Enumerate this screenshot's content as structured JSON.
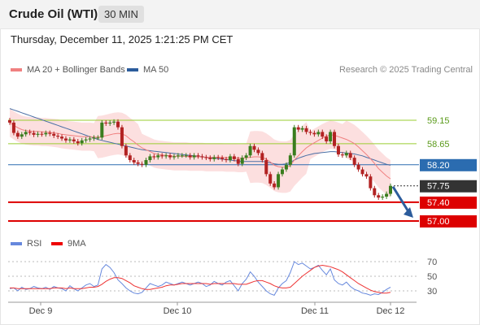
{
  "header": {
    "instrument": "Crude Oil (WTI)",
    "timeframe": "30 MIN",
    "datetime": "Thursday, December 11, 2025 1:21:25 PM CET"
  },
  "legend": {
    "ma20_label": "MA 20 + Bollinger Bands",
    "ma50_label": "MA 50",
    "credit": "Research © 2025 Trading Central",
    "rsi_label": "RSI",
    "rsi_ma_label": "9MA"
  },
  "colors": {
    "band_fill": "#fbd9d9",
    "ma20": "#f08080",
    "ma50": "#4a6fa5",
    "resistance": "#9acd32",
    "pivot": "#2b6cb0",
    "support": "#dd0000",
    "up_candle": "#3a7d1e",
    "down_candle": "#b22222",
    "rsi": "#6688dd",
    "rsi_ma": "#ee3333",
    "arrow": "#2c5c9c",
    "price_box": "#333333"
  },
  "chart_data": [
    {
      "type": "candlestick",
      "title": "Crude Oil (WTI)",
      "timeframe": "30 MIN",
      "y_range": [
        56.9,
        59.6
      ],
      "x_labels": [
        "Dec 9",
        "Dec 10",
        "Dec 11",
        "Dec 12"
      ],
      "last_price": 57.75,
      "levels": [
        {
          "value": 59.15,
          "label": "59.15",
          "role": "resistance"
        },
        {
          "value": 58.65,
          "label": "58.65",
          "role": "resistance"
        },
        {
          "value": 58.2,
          "label": "58.20",
          "role": "pivot"
        },
        {
          "value": 57.4,
          "label": "57.40",
          "role": "support"
        },
        {
          "value": 57.0,
          "label": "57.00",
          "role": "support"
        }
      ],
      "last_price_label": "57.75",
      "forecast_arrow": {
        "from": 57.75,
        "to": 57.0,
        "direction": "down"
      },
      "close": [
        59.1,
        58.88,
        58.8,
        58.85,
        58.9,
        58.88,
        58.84,
        58.86,
        58.85,
        58.88,
        58.86,
        58.82,
        58.8,
        58.76,
        58.72,
        58.74,
        58.7,
        58.66,
        58.72,
        58.74,
        58.76,
        58.78,
        58.78,
        59.1,
        59.08,
        59.1,
        59.12,
        59.0,
        58.6,
        58.4,
        58.3,
        58.25,
        58.22,
        58.2,
        58.3,
        58.38,
        58.36,
        58.4,
        58.38,
        58.4,
        58.36,
        58.38,
        58.4,
        58.4,
        58.4,
        58.36,
        58.4,
        58.38,
        58.36,
        58.35,
        58.32,
        58.36,
        58.35,
        58.32,
        58.3,
        58.38,
        58.32,
        58.22,
        58.35,
        58.4,
        58.6,
        58.52,
        58.45,
        58.3,
        58.0,
        57.8,
        57.72,
        58.0,
        58.1,
        58.2,
        58.4,
        59.0,
        58.95,
        58.98,
        58.9,
        58.88,
        58.85,
        58.9,
        58.8,
        58.7,
        58.9,
        58.6,
        58.42,
        58.4,
        58.45,
        58.35,
        58.2,
        58.1,
        58.0,
        57.95,
        57.7,
        57.55,
        57.5,
        57.52,
        57.58,
        57.75
      ],
      "ma20": [
        59.1,
        59.04,
        58.99,
        58.95,
        58.93,
        58.92,
        58.91,
        58.91,
        58.9,
        58.9,
        58.89,
        58.88,
        58.87,
        58.85,
        58.84,
        58.83,
        58.82,
        58.81,
        58.8,
        58.8,
        58.8,
        58.79,
        58.79,
        58.8,
        58.82,
        58.84,
        58.86,
        58.87,
        58.86,
        58.82,
        58.75,
        58.69,
        58.62,
        58.56,
        58.52,
        58.48,
        58.44,
        58.42,
        58.41,
        58.4,
        58.39,
        58.38,
        58.38,
        58.38,
        58.38,
        58.37,
        58.37,
        58.37,
        58.37,
        58.36,
        58.36,
        58.36,
        58.36,
        58.36,
        58.35,
        58.35,
        58.35,
        58.34,
        58.34,
        58.35,
        58.36,
        58.37,
        58.37,
        58.36,
        58.32,
        58.26,
        58.19,
        58.16,
        58.15,
        58.15,
        58.18,
        58.3,
        58.39,
        58.48,
        58.56,
        58.62,
        58.67,
        58.72,
        58.77,
        58.81,
        58.84,
        58.83,
        58.8,
        58.77,
        58.74,
        58.7,
        58.65,
        58.58,
        58.5,
        58.42,
        58.33,
        58.23,
        58.12,
        58.04,
        57.96,
        57.9
      ],
      "ma50": [
        59.4,
        59.37,
        59.34,
        59.31,
        59.28,
        59.25,
        59.22,
        59.19,
        59.16,
        59.13,
        59.1,
        59.07,
        59.04,
        59.01,
        58.98,
        58.95,
        58.92,
        58.89,
        58.86,
        58.83,
        58.8,
        58.77,
        58.74,
        58.72,
        58.7,
        58.68,
        58.66,
        58.64,
        58.62,
        58.6,
        58.58,
        58.56,
        58.54,
        58.52,
        58.51,
        58.5,
        58.49,
        58.48,
        58.47,
        58.46,
        58.45,
        58.44,
        58.43,
        58.42,
        58.41,
        58.4,
        58.39,
        58.38,
        58.37,
        58.36,
        58.35,
        58.34,
        58.33,
        58.32,
        58.31,
        58.3,
        58.29,
        58.28,
        58.27,
        58.27,
        58.27,
        58.27,
        58.27,
        58.27,
        58.26,
        58.24,
        58.22,
        58.21,
        58.21,
        58.22,
        58.25,
        58.3,
        58.34,
        58.37,
        58.4,
        58.42,
        58.44,
        58.45,
        58.46,
        58.47,
        58.48,
        58.48,
        58.47,
        58.46,
        58.45,
        58.44,
        58.43,
        58.41,
        58.39,
        58.36,
        58.33,
        58.3,
        58.27,
        58.24,
        58.21,
        58.19
      ]
    },
    {
      "type": "line",
      "title": "RSI",
      "y_range": [
        20,
        80
      ],
      "y_ticks": [
        70,
        50,
        30
      ],
      "series": [
        {
          "name": "RSI",
          "values": [
            33,
            34,
            30,
            35,
            32,
            33,
            36,
            34,
            33,
            35,
            32,
            36,
            34,
            33,
            30,
            37,
            33,
            30,
            34,
            38,
            40,
            36,
            38,
            60,
            66,
            62,
            55,
            45,
            40,
            34,
            30,
            27,
            26,
            28,
            34,
            40,
            38,
            36,
            38,
            42,
            40,
            38,
            40,
            42,
            40,
            38,
            40,
            42,
            40,
            36,
            38,
            43,
            40,
            38,
            42,
            44,
            37,
            30,
            40,
            46,
            56,
            50,
            42,
            36,
            30,
            26,
            24,
            34,
            40,
            44,
            55,
            70,
            66,
            68,
            64,
            60,
            62,
            65,
            58,
            52,
            60,
            45,
            40,
            38,
            42,
            36,
            32,
            30,
            27,
            26,
            24,
            26,
            25,
            28,
            32,
            35
          ]
        },
        {
          "name": "9MA",
          "values": [
            34,
            34,
            33,
            33,
            33,
            33,
            33,
            33,
            33,
            33,
            33,
            34,
            34,
            34,
            33,
            34,
            33,
            33,
            33,
            34,
            35,
            35,
            36,
            39,
            43,
            46,
            48,
            48,
            47,
            44,
            41,
            37,
            35,
            33,
            32,
            32,
            33,
            34,
            35,
            37,
            38,
            38,
            39,
            40,
            40,
            40,
            40,
            40,
            40,
            40,
            39,
            40,
            40,
            40,
            40,
            40,
            40,
            39,
            39,
            39,
            41,
            43,
            44,
            44,
            42,
            40,
            37,
            35,
            34,
            34,
            35,
            40,
            45,
            50,
            54,
            58,
            62,
            64,
            65,
            64,
            63,
            61,
            59,
            56,
            52,
            48,
            44,
            40,
            37,
            34,
            31,
            29,
            28,
            27,
            27,
            28
          ]
        }
      ]
    }
  ]
}
